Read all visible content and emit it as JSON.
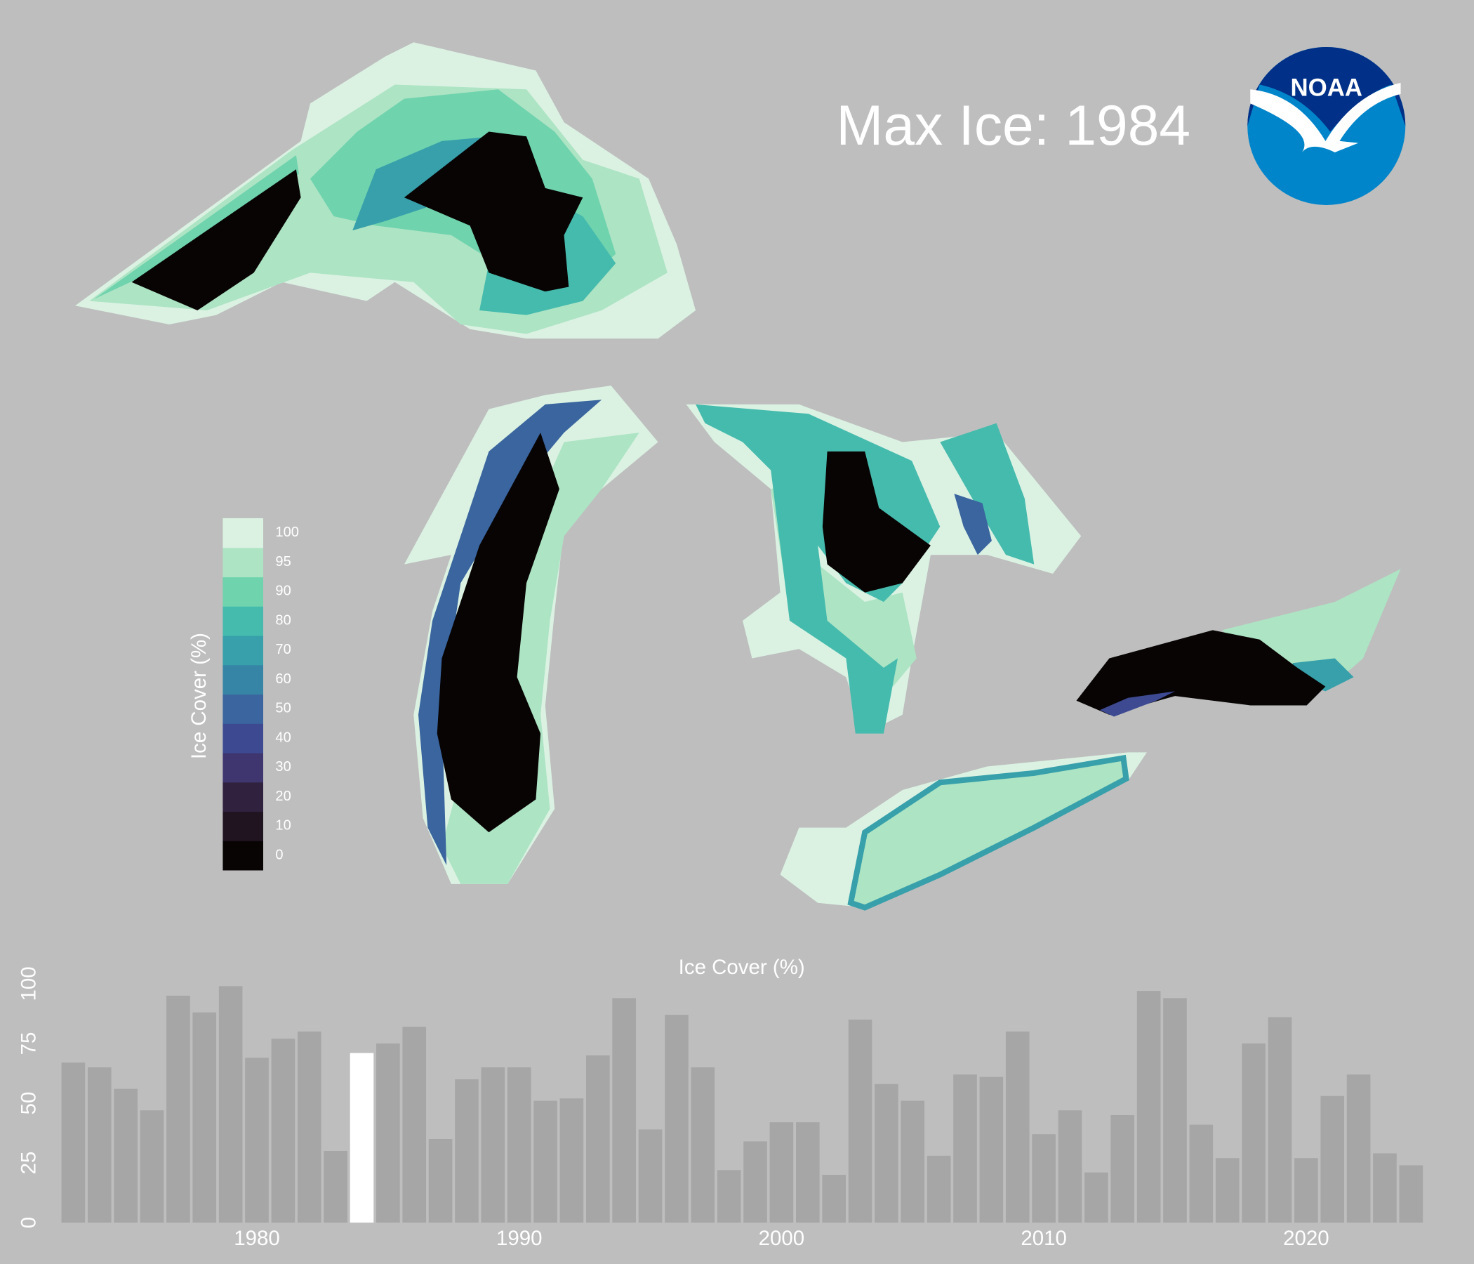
{
  "chart_data": {
    "type": "bar",
    "title": "Max Ice: 1984",
    "logo": "NOAA",
    "y_label": "Ice Cover (%)",
    "x": [
      1973,
      1974,
      1975,
      1976,
      1977,
      1978,
      1979,
      1980,
      1981,
      1982,
      1983,
      1984,
      1985,
      1986,
      1987,
      1988,
      1989,
      1990,
      1991,
      1992,
      1993,
      1994,
      1995,
      1996,
      1997,
      1998,
      1999,
      2000,
      2001,
      2002,
      2003,
      2004,
      2005,
      2006,
      2007,
      2008,
      2009,
      2010,
      2011,
      2012,
      2013,
      2014,
      2015,
      2016,
      2017,
      2018,
      2019,
      2020,
      2021,
      2022,
      2023,
      2024
    ],
    "values": [
      67,
      65,
      56,
      47,
      95,
      88,
      99,
      69,
      77,
      80,
      30,
      71,
      75,
      82,
      35,
      60,
      65,
      65,
      51,
      52,
      70,
      94,
      39,
      87,
      65,
      22,
      34,
      42,
      42,
      20,
      85,
      58,
      51,
      28,
      62,
      61,
      80,
      37,
      47,
      21,
      45,
      97,
      94,
      41,
      27,
      75,
      86,
      27,
      53,
      62,
      29,
      24
    ],
    "color": "#a6a6a6",
    "highlight": 1984,
    "highlight_color": "#ffffff",
    "xlim": [
      1972.5,
      2024.5
    ],
    "xticks": [
      1980,
      1990,
      2000,
      2010,
      2020
    ],
    "ylim": [
      0,
      100
    ],
    "yticks": [
      0,
      25,
      50,
      75,
      100
    ],
    "legend": {
      "title": "Ice Cover (%)",
      "levels": [
        0,
        10,
        20,
        30,
        40,
        50,
        60,
        70,
        80,
        90,
        95,
        100
      ],
      "colors": [
        "#080404",
        "#1f1420",
        "#30223f",
        "#3f3670",
        "#3d4a92",
        "#3a659e",
        "#3785a6",
        "#37a0aa",
        "#45bbad",
        "#6fd3ae",
        "#ade4c4",
        "#dbf2e3"
      ]
    }
  }
}
